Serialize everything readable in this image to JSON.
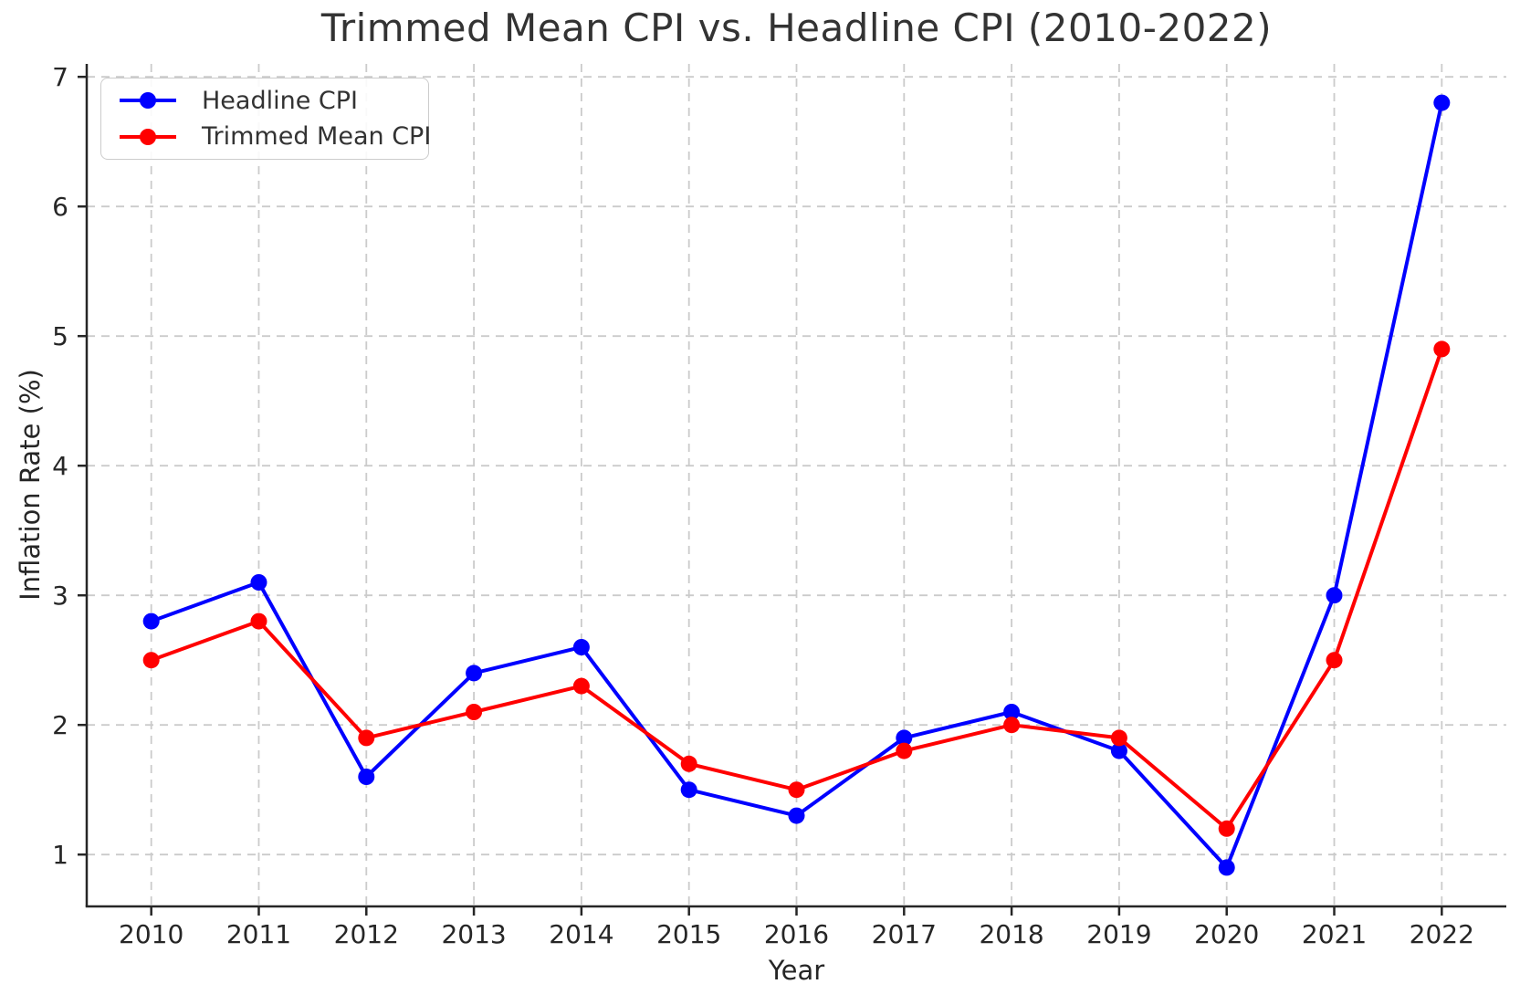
{
  "chart_data": {
    "type": "line",
    "title": "Trimmed Mean CPI vs. Headline CPI (2010-2022)",
    "xlabel": "Year",
    "ylabel": "Inflation Rate (%)",
    "x": [
      2010,
      2011,
      2012,
      2013,
      2014,
      2015,
      2016,
      2017,
      2018,
      2019,
      2020,
      2021,
      2022
    ],
    "series": [
      {
        "name": "Headline CPI",
        "color": "#0000ff",
        "marker": "circle",
        "values": [
          2.8,
          3.1,
          1.6,
          2.4,
          2.6,
          1.5,
          1.3,
          1.9,
          2.1,
          1.8,
          0.9,
          3.0,
          6.8
        ]
      },
      {
        "name": "Trimmed Mean CPI",
        "color": "#ff0000",
        "marker": "circle",
        "values": [
          2.5,
          2.8,
          1.9,
          2.1,
          2.3,
          1.7,
          1.5,
          1.8,
          2.0,
          1.9,
          1.2,
          2.5,
          4.9
        ]
      }
    ],
    "xlim": [
      2009.4,
      2022.6
    ],
    "ylim": [
      0.6,
      7.1
    ],
    "yticks": [
      1,
      2,
      3,
      4,
      5,
      6,
      7
    ],
    "xticks": [
      2010,
      2011,
      2012,
      2013,
      2014,
      2015,
      2016,
      2017,
      2018,
      2019,
      2020,
      2021,
      2022
    ],
    "grid": true,
    "grid_style": "dashed",
    "legend_position": "upper-left",
    "colors": {
      "grid": "#cbcbcb",
      "spine": "#262626",
      "tick_text": "#262626",
      "title_text": "#333333",
      "background": "#ffffff"
    }
  }
}
